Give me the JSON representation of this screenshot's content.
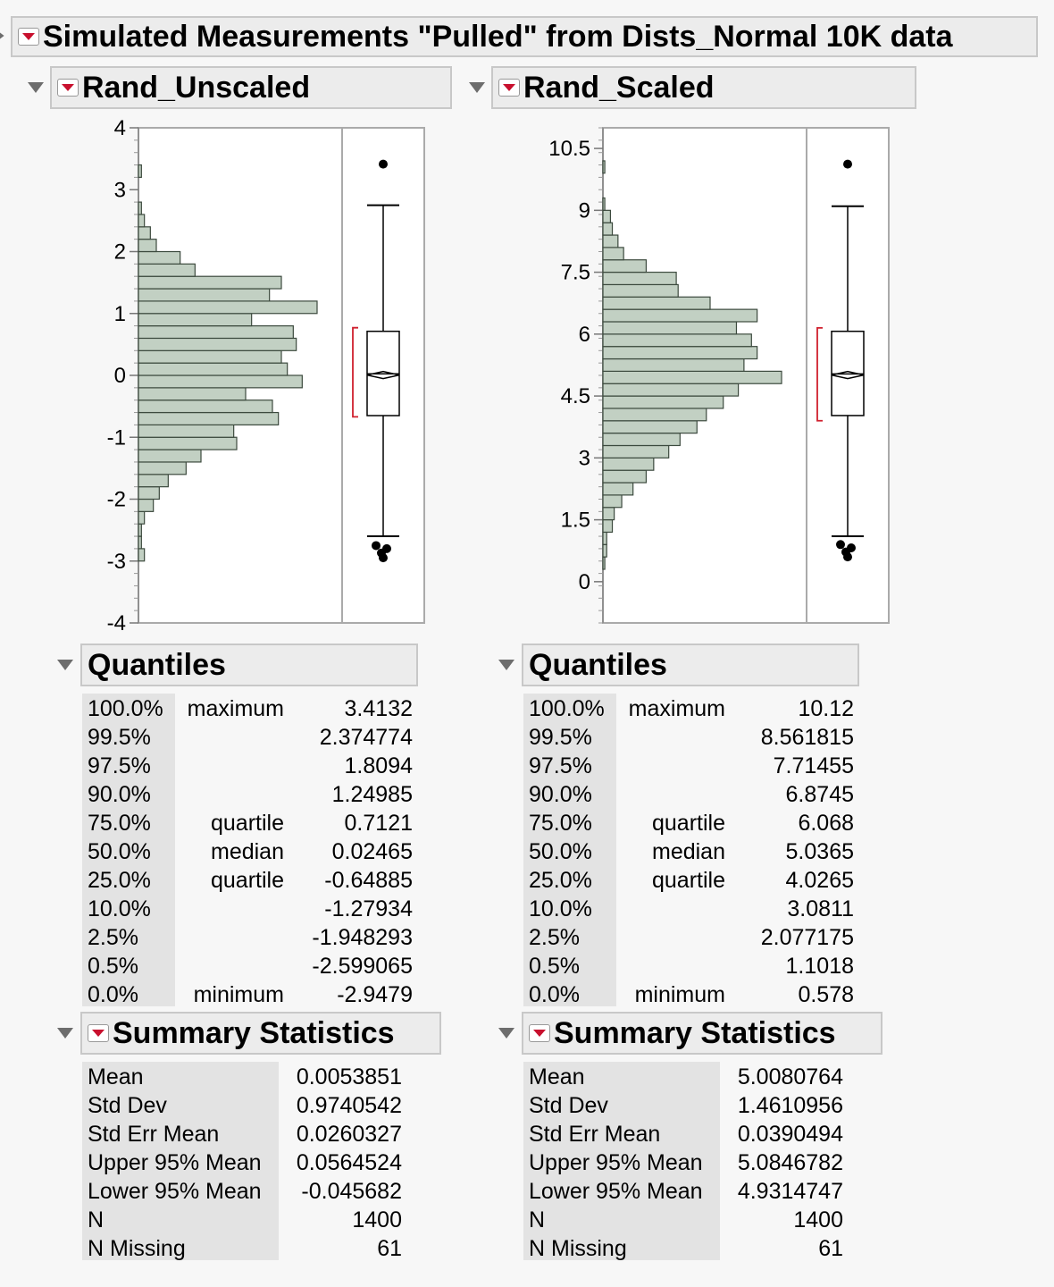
{
  "title": "Simulated Measurements \"Pulled\" from Dists_Normal 10K data",
  "panels": [
    {
      "title": "Rand_Unscaled",
      "axis": {
        "min": -4,
        "max": 4,
        "ticks": [
          "4",
          "3",
          "2",
          "1",
          "0",
          "-1",
          "-2",
          "-3",
          "-4"
        ],
        "tick_values": [
          4,
          3,
          2,
          1,
          0,
          -1,
          -2,
          -3,
          -4
        ]
      },
      "quantiles_title": "Quantiles",
      "quantiles": [
        {
          "pct": "100.0%",
          "label": "maximum",
          "value": "3.4132"
        },
        {
          "pct": "99.5%",
          "label": "",
          "value": "2.374774"
        },
        {
          "pct": "97.5%",
          "label": "",
          "value": "1.8094"
        },
        {
          "pct": "90.0%",
          "label": "",
          "value": "1.24985"
        },
        {
          "pct": "75.0%",
          "label": "quartile",
          "value": "0.7121"
        },
        {
          "pct": "50.0%",
          "label": "median",
          "value": "0.02465"
        },
        {
          "pct": "25.0%",
          "label": "quartile",
          "value": "-0.64885"
        },
        {
          "pct": "10.0%",
          "label": "",
          "value": "-1.27934"
        },
        {
          "pct": "2.5%",
          "label": "",
          "value": "-1.948293"
        },
        {
          "pct": "0.5%",
          "label": "",
          "value": "-2.599065"
        },
        {
          "pct": "0.0%",
          "label": "minimum",
          "value": "-2.9479"
        }
      ],
      "summary_title": "Summary Statistics",
      "summary": [
        {
          "label": "Mean",
          "value": "0.0053851"
        },
        {
          "label": "Std Dev",
          "value": "0.9740542"
        },
        {
          "label": "Std Err Mean",
          "value": "0.0260327"
        },
        {
          "label": "Upper 95% Mean",
          "value": "0.0564524"
        },
        {
          "label": "Lower 95% Mean",
          "value": "-0.045682"
        },
        {
          "label": "N",
          "value": "1400"
        },
        {
          "label": "N Missing",
          "value": "61"
        }
      ]
    },
    {
      "title": "Rand_Scaled",
      "axis": {
        "min": -1,
        "max": 11,
        "ticks": [
          "10.5",
          "9",
          "7.5",
          "6",
          "4.5",
          "3",
          "1.5",
          "0"
        ],
        "tick_values": [
          10.5,
          9,
          7.5,
          6,
          4.5,
          3,
          1.5,
          0
        ]
      },
      "quantiles_title": "Quantiles",
      "quantiles": [
        {
          "pct": "100.0%",
          "label": "maximum",
          "value": "10.12"
        },
        {
          "pct": "99.5%",
          "label": "",
          "value": "8.561815"
        },
        {
          "pct": "97.5%",
          "label": "",
          "value": "7.71455"
        },
        {
          "pct": "90.0%",
          "label": "",
          "value": "6.8745"
        },
        {
          "pct": "75.0%",
          "label": "quartile",
          "value": "6.068"
        },
        {
          "pct": "50.0%",
          "label": "median",
          "value": "5.0365"
        },
        {
          "pct": "25.0%",
          "label": "quartile",
          "value": "4.0265"
        },
        {
          "pct": "10.0%",
          "label": "",
          "value": "3.0811"
        },
        {
          "pct": "2.5%",
          "label": "",
          "value": "2.077175"
        },
        {
          "pct": "0.5%",
          "label": "",
          "value": "1.1018"
        },
        {
          "pct": "0.0%",
          "label": "minimum",
          "value": "0.578"
        }
      ],
      "summary_title": "Summary Statistics",
      "summary": [
        {
          "label": "Mean",
          "value": "5.0080764"
        },
        {
          "label": "Std Dev",
          "value": "1.4610956"
        },
        {
          "label": "Std Err Mean",
          "value": "0.0390494"
        },
        {
          "label": "Upper 95% Mean",
          "value": "5.0846782"
        },
        {
          "label": "Lower 95% Mean",
          "value": "4.9314747"
        },
        {
          "label": "N",
          "value": "1400"
        },
        {
          "label": "N Missing",
          "value": "61"
        }
      ]
    }
  ],
  "chart_data": [
    {
      "type": "bar",
      "orientation": "horizontal",
      "bin_width": 0.2,
      "bins_lower": [
        -3.0,
        -2.8,
        -2.6,
        -2.4,
        -2.2,
        -2.0,
        -1.8,
        -1.6,
        -1.4,
        -1.2,
        -1.0,
        -0.8,
        -0.6,
        -0.4,
        -0.2,
        0.0,
        0.2,
        0.4,
        0.6,
        0.8,
        1.0,
        1.2,
        1.4,
        1.6,
        1.8,
        2.0,
        2.2,
        2.4,
        2.6,
        2.8,
        3.0,
        3.2,
        3.4
      ],
      "counts": [
        2,
        1,
        1,
        2,
        5,
        7,
        10,
        16,
        21,
        33,
        32,
        47,
        45,
        36,
        55,
        50,
        48,
        53,
        52,
        38,
        60,
        44,
        48,
        19,
        14,
        6,
        4,
        2,
        1,
        0,
        0,
        1,
        0
      ],
      "ylim": [
        -4,
        4
      ],
      "box": {
        "min_whisker": -2.6,
        "q1": -0.65,
        "median": 0.02465,
        "q3": 0.7121,
        "max_whisker": 2.75,
        "mean": 0.0053851,
        "ci_low": -0.67,
        "ci_high": 0.77
      },
      "outliers": [
        3.4132,
        -2.75,
        -2.8,
        -2.87,
        -2.9479
      ]
    },
    {
      "type": "bar",
      "orientation": "horizontal",
      "bin_width": 0.3,
      "bins_lower": [
        0.3,
        0.6,
        0.9,
        1.2,
        1.5,
        1.8,
        2.1,
        2.4,
        2.7,
        3.0,
        3.3,
        3.6,
        3.9,
        4.2,
        4.5,
        4.8,
        5.1,
        5.4,
        5.7,
        6.0,
        6.3,
        6.6,
        6.9,
        7.2,
        7.5,
        7.8,
        8.1,
        8.4,
        8.7,
        9.0,
        9.3,
        9.6,
        9.9
      ],
      "counts": [
        1,
        2,
        2,
        5,
        6,
        10,
        16,
        23,
        27,
        35,
        41,
        50,
        55,
        64,
        72,
        95,
        75,
        82,
        79,
        71,
        82,
        57,
        40,
        39,
        23,
        11,
        8,
        5,
        4,
        1,
        0,
        0,
        1
      ],
      "ylim": [
        -1,
        11
      ],
      "box": {
        "min_whisker": 1.1,
        "q1": 4.0265,
        "median": 5.0365,
        "q3": 6.068,
        "max_whisker": 9.1,
        "mean": 5.0080764,
        "ci_low": 3.9,
        "ci_high": 6.15
      },
      "outliers": [
        10.12,
        0.9,
        0.82,
        0.72,
        0.6
      ]
    }
  ]
}
